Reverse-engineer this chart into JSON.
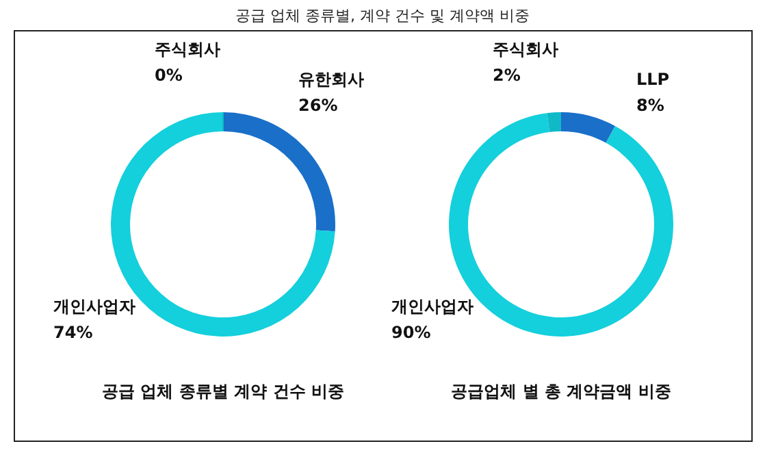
{
  "chart_data": [
    {
      "type": "other",
      "title": "공급 업체 종류별, 계약 건수 및 계약액 비중"
    },
    {
      "type": "donut",
      "title": "공급 업체 종류별 계약 건수 비중",
      "categories": [
        "유한회사",
        "개인사업자",
        "주식회사"
      ],
      "values": [
        26,
        74,
        0
      ],
      "colors": [
        "#1a6fc9",
        "#14cfdc",
        "#0fb9c8"
      ],
      "value_labels": [
        "26%",
        "74%",
        "0%"
      ]
    },
    {
      "type": "donut",
      "title": "공급업체 별 총 계약금액 비중",
      "categories": [
        "LLP",
        "개인사업자",
        "주식회사"
      ],
      "values": [
        8,
        90,
        2
      ],
      "colors": [
        "#1a6fc9",
        "#14cfdc",
        "#0fb9c8"
      ],
      "value_labels": [
        "8%",
        "90%",
        "2%"
      ]
    }
  ]
}
